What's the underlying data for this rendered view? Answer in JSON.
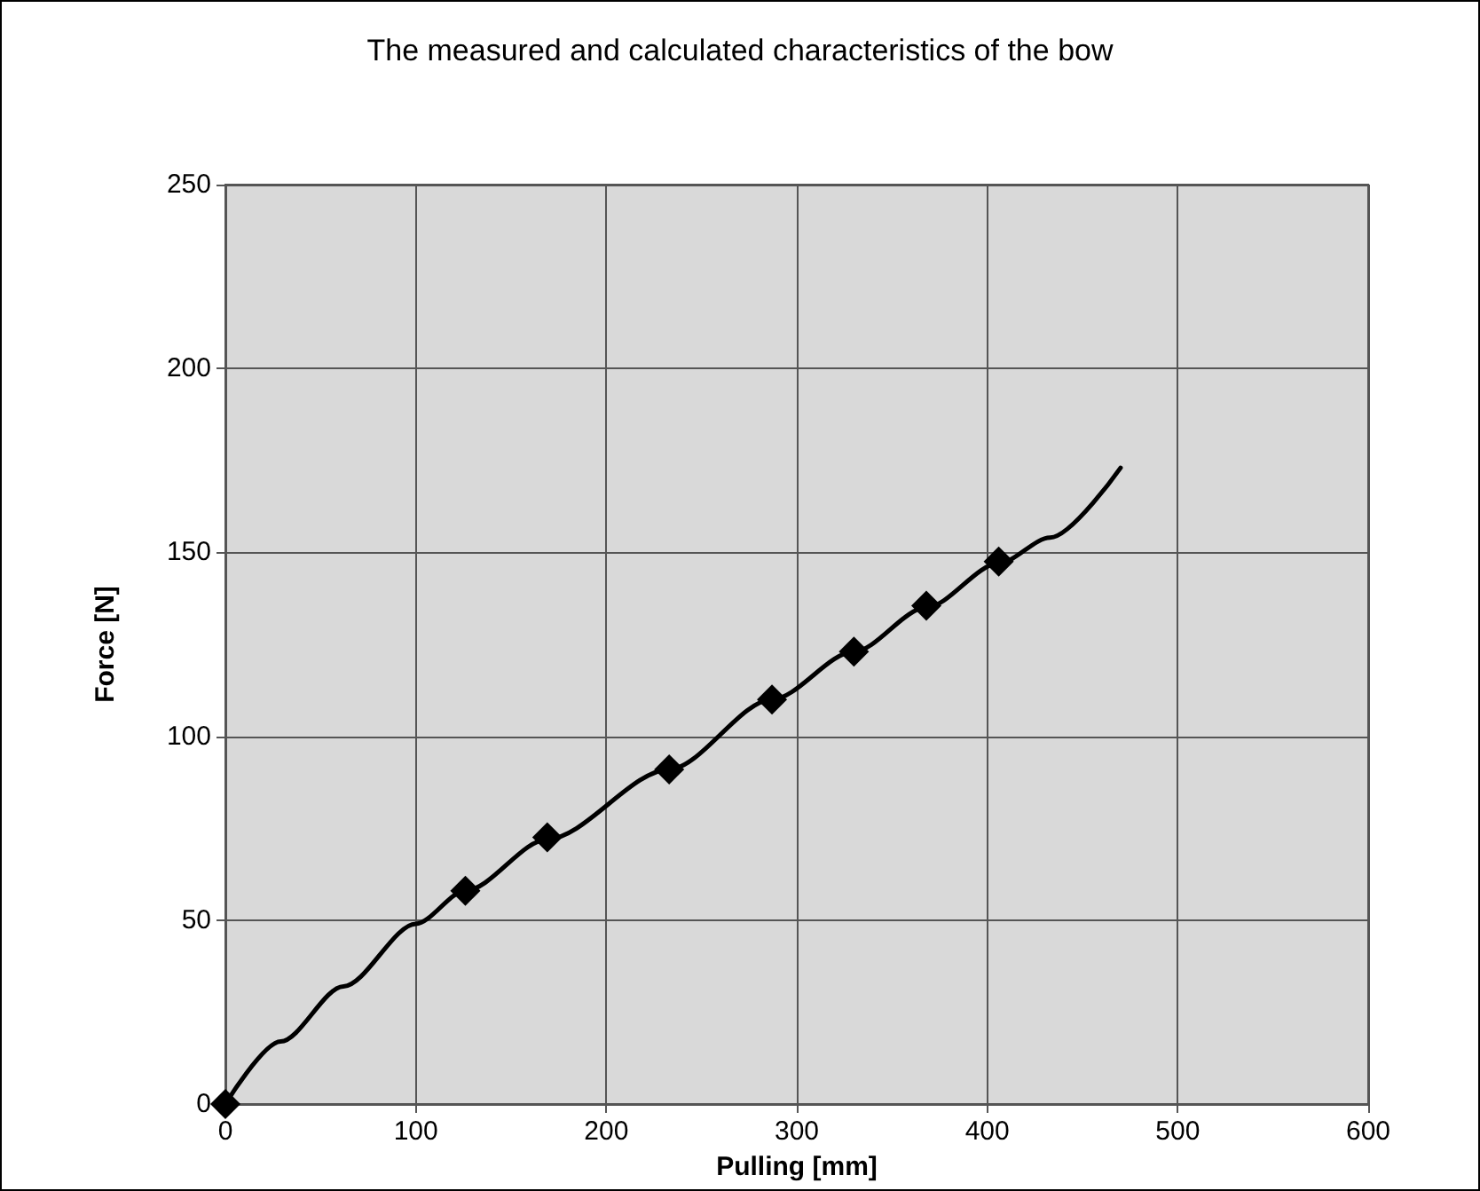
{
  "chart_data": {
    "type": "line",
    "title": "The measured and calculated characteristics of the bow",
    "xlabel": "Pulling [mm]",
    "ylabel": "Force [N]",
    "series": [
      {
        "color": "#000000",
        "marker": "none",
        "x": [
          0,
          29,
          62,
          100,
          126,
          169,
          233,
          287,
          330,
          368,
          406,
          433,
          470
        ],
        "values": [
          0,
          17,
          32,
          49,
          58,
          72,
          91,
          110,
          123,
          135,
          147,
          154,
          173
        ]
      },
      {
        "type": "scatter",
        "color": "#000000",
        "marker": "diamond",
        "x": [
          0,
          126,
          169,
          233,
          287,
          330,
          368,
          406
        ],
        "values": [
          0,
          58,
          72.5,
          91,
          110,
          123,
          135.5,
          147.5
        ]
      }
    ],
    "xlim": [
      0,
      600
    ],
    "xticks": [
      0,
      100,
      200,
      300,
      400,
      500,
      600
    ],
    "ylim": [
      0,
      250
    ],
    "yticks": [
      0,
      50,
      100,
      150,
      200,
      250
    ],
    "grid": true
  }
}
